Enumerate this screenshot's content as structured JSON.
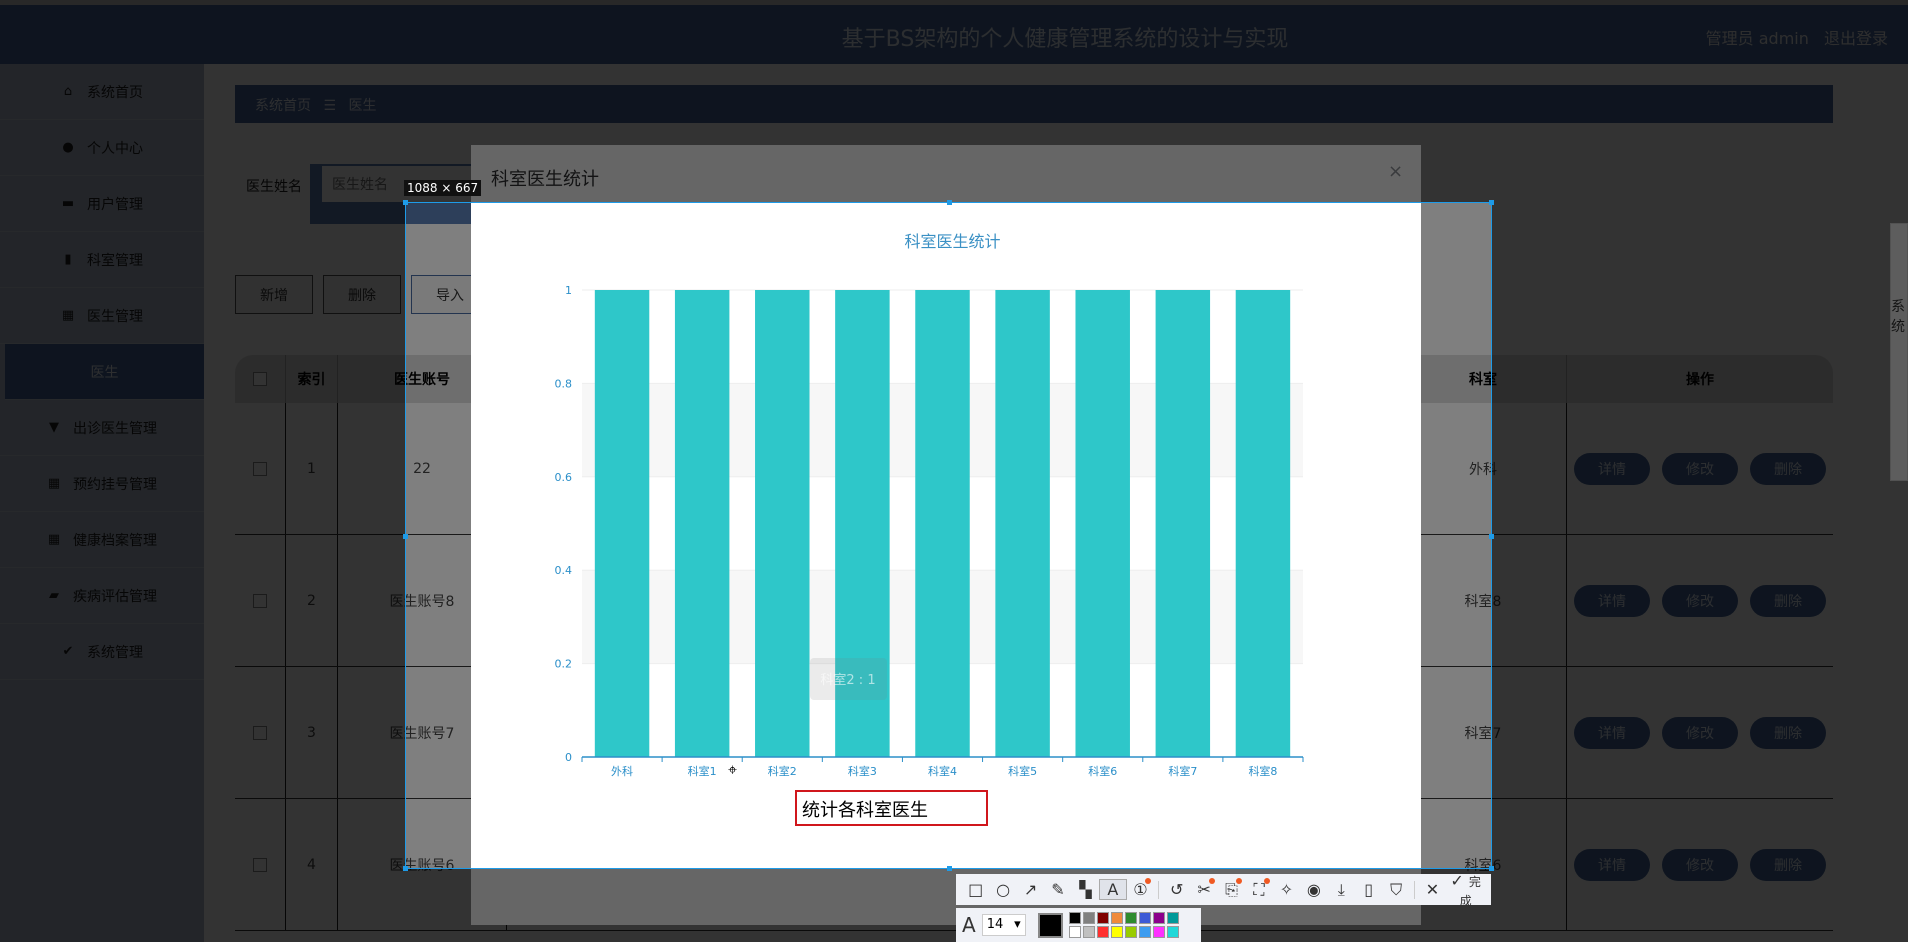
{
  "header": {
    "title": "基于BS架构的个人健康管理系统的设计与实现",
    "user": "管理员 admin",
    "logout": "退出登录"
  },
  "sidebar": {
    "items": [
      {
        "label": "系统首页",
        "icon": "home-icon",
        "glyph": "⌂"
      },
      {
        "label": "个人中心",
        "icon": "user-icon",
        "glyph": "●"
      },
      {
        "label": "用户管理",
        "icon": "briefcase-icon",
        "glyph": "▬"
      },
      {
        "label": "科室管理",
        "icon": "clipboard-icon",
        "glyph": "▮"
      },
      {
        "label": "医生管理",
        "icon": "grid-icon",
        "glyph": "▦"
      },
      {
        "label": "医生",
        "icon": "",
        "glyph": ""
      },
      {
        "label": "出诊医生管理",
        "icon": "brush-icon",
        "glyph": "▼"
      },
      {
        "label": "预约挂号管理",
        "icon": "grid-icon",
        "glyph": "▦"
      },
      {
        "label": "健康档案管理",
        "icon": "grid-icon",
        "glyph": "▦"
      },
      {
        "label": "疾病评估管理",
        "icon": "wallet-icon",
        "glyph": "▰"
      },
      {
        "label": "系统管理",
        "icon": "clipboard-check-icon",
        "glyph": "✔"
      }
    ]
  },
  "breadcrumb": {
    "home": "系统首页",
    "sep": "☰",
    "current": "医生"
  },
  "search": {
    "label": "医生姓名",
    "placeholder": "医生姓名"
  },
  "toolbar_buttons": {
    "add": "新增",
    "delete": "删除",
    "import": "导入"
  },
  "table": {
    "headers": {
      "index": "索引",
      "account": "医生账号",
      "dept": "科室",
      "ops": "操作"
    },
    "rows": [
      {
        "index": "1",
        "account": "22",
        "dept": "外科"
      },
      {
        "index": "2",
        "account": "医生账号8",
        "dept": "科室8"
      },
      {
        "index": "3",
        "account": "医生账号7",
        "dept": "科室7"
      },
      {
        "index": "4",
        "account": "医生账号6",
        "dept": "科室6"
      }
    ],
    "row_actions": {
      "detail": "详情",
      "edit": "修改",
      "delete": "删除"
    }
  },
  "right_panel": {
    "text": "系统"
  },
  "modal": {
    "title": "科室医生统计",
    "close": "×"
  },
  "chart_data": {
    "type": "bar",
    "title": "科室医生统计",
    "categories": [
      "外科",
      "科室1",
      "科室2",
      "科室3",
      "科室4",
      "科室5",
      "科室6",
      "科室7",
      "科室8"
    ],
    "values": [
      1,
      1,
      1,
      1,
      1,
      1,
      1,
      1,
      1
    ],
    "ylim": [
      0,
      1
    ],
    "yticks": [
      "0",
      "0.2",
      "0.4",
      "0.6",
      "0.8",
      "1"
    ],
    "bar_color": "#2ec7c9",
    "axis_color": "#2b8fc9",
    "tooltip": "科室2 : 1",
    "grid": true
  },
  "screenshot_tool": {
    "size_label": "1088 × 667",
    "annotation": "统计各科室医生",
    "done": "完成",
    "font_size": "14",
    "current_color": "#000000",
    "palette": [
      "#000000",
      "#808080",
      "#800000",
      "#f08a3c",
      "#2e8b2e",
      "#3c5ad6",
      "#8b008b",
      "#009999",
      "#ffffff",
      "#c0c0c0",
      "#ff3030",
      "#ffff00",
      "#99cc00",
      "#3c9cf0",
      "#ff30ff",
      "#20d8d8"
    ]
  }
}
